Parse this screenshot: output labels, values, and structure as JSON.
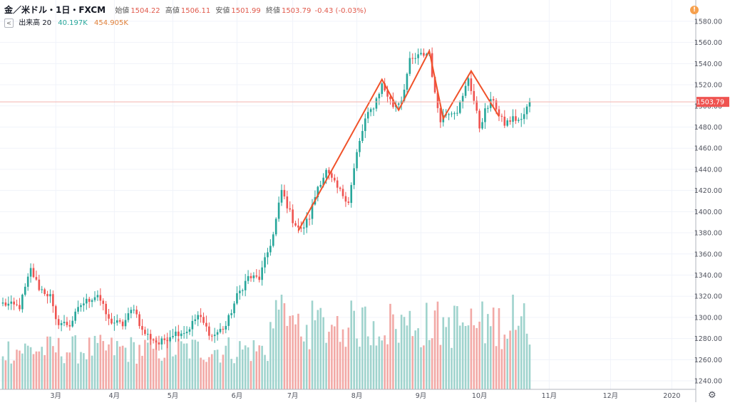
{
  "header": {
    "symbol": "金／米ドル・1日・FXCM",
    "open_label": "始値",
    "open": "1504.22",
    "high_label": "高値",
    "high": "1506.11",
    "low_label": "安値",
    "low": "1501.99",
    "close_label": "終値",
    "close": "1503.79",
    "change": "-0.43 (-0.03%)"
  },
  "volume_legend": {
    "toggle": "<",
    "label": "出来高 20",
    "value1": "40.197K",
    "value2": "454.905K"
  },
  "alert_icon": "!",
  "settings_icon": "gear-icon",
  "colors": {
    "up": "#26a69a",
    "down": "#ef5350",
    "vol_up": "#9fd3cd",
    "vol_down": "#f2a9a6",
    "trendline": "#f0522a",
    "price_line": "#f4b3ad",
    "last_price_bg": "#ef5350"
  },
  "chart_data": {
    "type": "candlestick",
    "last_price": "1503.79",
    "y_axis": {
      "ticks": [
        1240,
        1260,
        1280,
        1300,
        1320,
        1340,
        1360,
        1380,
        1400,
        1420,
        1440,
        1460,
        1480,
        1500,
        1520,
        1540,
        1560,
        1580
      ],
      "range": [
        1236,
        1586
      ]
    },
    "x_axis": {
      "ticks": [
        {
          "label": "3月",
          "index": 19
        },
        {
          "label": "4月",
          "index": 40
        },
        {
          "label": "5月",
          "index": 61
        },
        {
          "label": "6月",
          "index": 84
        },
        {
          "label": "7月",
          "index": 104
        },
        {
          "label": "8月",
          "index": 127
        },
        {
          "label": "9月",
          "index": 150
        },
        {
          "label": "10月",
          "index": 171
        },
        {
          "label": "11月",
          "index": 196
        },
        {
          "label": "12月",
          "index": 218
        },
        {
          "label": "2020",
          "index": 240
        }
      ]
    },
    "price_anchors": [
      [
        0,
        1313
      ],
      [
        6,
        1310
      ],
      [
        10,
        1345
      ],
      [
        13,
        1328
      ],
      [
        17,
        1320
      ],
      [
        19,
        1296
      ],
      [
        24,
        1293
      ],
      [
        28,
        1312
      ],
      [
        34,
        1322
      ],
      [
        38,
        1297
      ],
      [
        43,
        1293
      ],
      [
        47,
        1310
      ],
      [
        50,
        1287
      ],
      [
        56,
        1275
      ],
      [
        61,
        1285
      ],
      [
        66,
        1287
      ],
      [
        70,
        1302
      ],
      [
        75,
        1282
      ],
      [
        80,
        1292
      ],
      [
        84,
        1320
      ],
      [
        88,
        1338
      ],
      [
        92,
        1337
      ],
      [
        97,
        1378
      ],
      [
        100,
        1420
      ],
      [
        104,
        1392
      ],
      [
        107,
        1382
      ],
      [
        110,
        1395
      ],
      [
        113,
        1424
      ],
      [
        116,
        1438
      ],
      [
        120,
        1422
      ],
      [
        124,
        1410
      ],
      [
        127,
        1455
      ],
      [
        130,
        1487
      ],
      [
        133,
        1500
      ],
      [
        136,
        1520
      ],
      [
        140,
        1500
      ],
      [
        143,
        1506
      ],
      [
        146,
        1542
      ],
      [
        150,
        1548
      ],
      [
        153,
        1550
      ],
      [
        155,
        1510
      ],
      [
        157,
        1488
      ],
      [
        160,
        1495
      ],
      [
        163,
        1496
      ],
      [
        165,
        1508
      ],
      [
        167,
        1527
      ],
      [
        169,
        1505
      ],
      [
        171,
        1480
      ],
      [
        173,
        1495
      ],
      [
        176,
        1507
      ],
      [
        178,
        1490
      ],
      [
        180,
        1483
      ],
      [
        183,
        1488
      ],
      [
        186,
        1486
      ],
      [
        189,
        1504
      ]
    ],
    "volume": {
      "range": [
        0,
        100000
      ]
    },
    "trendlines": [
      [
        [
          106,
          1382
        ],
        [
          136,
          1525
        ],
        [
          142,
          1496
        ],
        [
          153,
          1552
        ],
        [
          158,
          1488
        ],
        [
          168,
          1533
        ],
        [
          178,
          1490
        ]
      ]
    ]
  }
}
